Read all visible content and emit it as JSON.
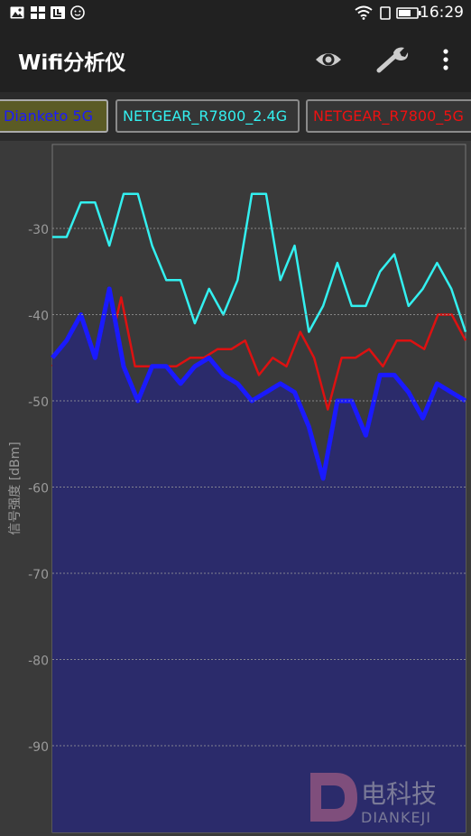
{
  "status_bar": {
    "time": "16:29",
    "icons": [
      "image-icon",
      "apps-icon",
      "notification-icon",
      "emoji-icon",
      "wifi-icon",
      "sim-icon",
      "battery-icon"
    ]
  },
  "app_bar": {
    "title": "Wifi分析仪",
    "actions": [
      "eye-icon",
      "wrench-icon",
      "more-vert-icon"
    ]
  },
  "tabs": [
    {
      "label": "Dianketo 5G",
      "color": "#1a1aff"
    },
    {
      "label": "NETGEAR_R7800_2.4G",
      "color": "#33f0f0"
    },
    {
      "label": "NETGEAR_R7800_5G",
      "color": "#ee1111"
    }
  ],
  "watermark": {
    "cn": "电科技",
    "en": "DIANKEJI"
  },
  "chart_data": {
    "type": "line",
    "ylabel": "信号强度 [dBm]",
    "ylim": [
      -100,
      -20
    ],
    "yticks": [
      -30,
      -40,
      -50,
      -60,
      -70,
      -80,
      -90
    ],
    "grid": true,
    "series": [
      {
        "name": "NETGEAR_R7800_2.4G",
        "color": "#33f0f0",
        "values": [
          -31,
          -31,
          -27,
          -27,
          -32,
          -26,
          -26,
          -32,
          -36,
          -36,
          -41,
          -37,
          -40,
          -36,
          -26,
          -26,
          -36,
          -32,
          -42,
          -39,
          -34,
          -39,
          -39,
          -35,
          -33,
          -39,
          -37,
          -34,
          -37,
          -42
        ]
      },
      {
        "name": "NETGEAR_R7800_5G",
        "color": "#dd1111",
        "values": [
          -46,
          -44,
          -47,
          -44,
          -45,
          -38,
          -46,
          -46,
          -46,
          -46,
          -45,
          -45,
          -44,
          -44,
          -43,
          -47,
          -45,
          -46,
          -42,
          -45,
          -51,
          -45,
          -45,
          -44,
          -46,
          -43,
          -43,
          -44,
          -40,
          -40,
          -43
        ]
      },
      {
        "name": "Dianketo 5G",
        "color": "#1a1aff",
        "fill": "#2b2b6b",
        "values": [
          -45,
          -43,
          -40,
          -45,
          -37,
          -46,
          -50,
          -46,
          -46,
          -48,
          -46,
          -45,
          -47,
          -48,
          -50,
          -49,
          -48,
          -49,
          -53,
          -59,
          -50,
          -50,
          -54,
          -47,
          -47,
          -49,
          -52,
          -48,
          -49,
          -50
        ]
      }
    ]
  }
}
